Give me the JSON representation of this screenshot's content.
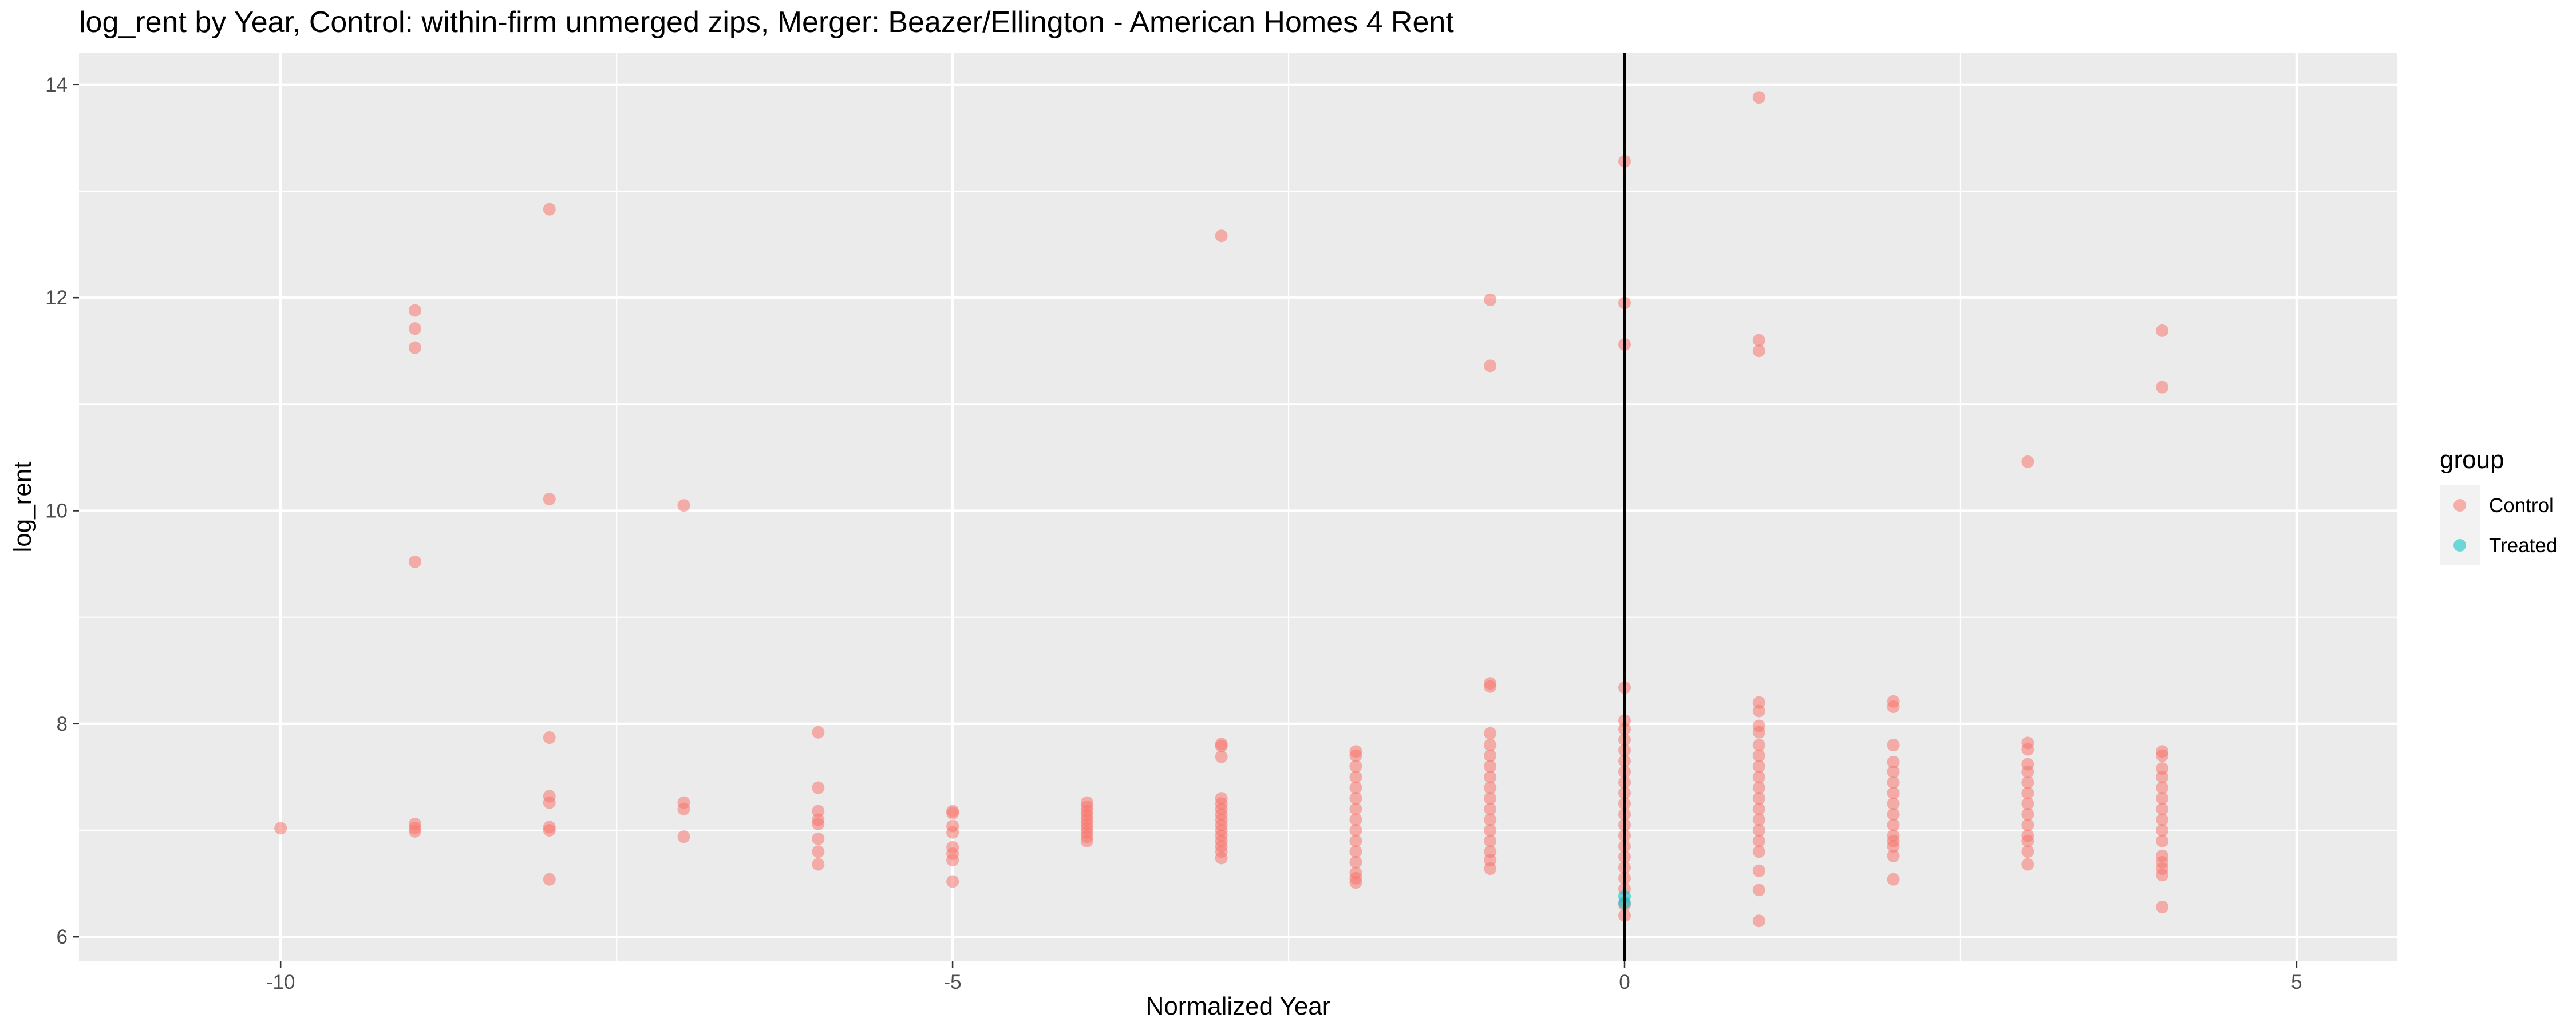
{
  "chart_data": {
    "type": "scatter",
    "title": "log_rent by Year, Control: within-firm unmerged zips, Merger: Beazer/Ellington - American Homes 4 Rent",
    "xlabel": "Normalized Year",
    "ylabel": "log_rent",
    "xlim": [
      -11.5,
      5.75
    ],
    "ylim": [
      5.77,
      14.3
    ],
    "x_ticks": [
      -10,
      -5,
      0,
      5
    ],
    "x_tick_labels": [
      "-10",
      "-5",
      "0",
      "5"
    ],
    "y_ticks": [
      6,
      8,
      10,
      12,
      14
    ],
    "y_tick_labels": [
      "6",
      "8",
      "10",
      "12",
      "14"
    ],
    "grid": true,
    "vline_x": 0,
    "legend": {
      "title": "group",
      "placement": "right",
      "entries": [
        {
          "label": "Control",
          "color": "#F8766D"
        },
        {
          "label": "Treated",
          "color": "#00BFC4"
        }
      ]
    },
    "series": [
      {
        "name": "Control",
        "color": "#F8766D",
        "points": [
          [
            -10,
            7.02
          ],
          [
            -9,
            11.88
          ],
          [
            -9,
            11.71
          ],
          [
            -9,
            11.53
          ],
          [
            -9,
            9.52
          ],
          [
            -9,
            7.06
          ],
          [
            -9,
            7.02
          ],
          [
            -9,
            6.99
          ],
          [
            -8,
            12.83
          ],
          [
            -8,
            10.11
          ],
          [
            -8,
            7.87
          ],
          [
            -8,
            7.32
          ],
          [
            -8,
            7.26
          ],
          [
            -8,
            7.03
          ],
          [
            -8,
            7.0
          ],
          [
            -8,
            6.54
          ],
          [
            -7,
            10.05
          ],
          [
            -7,
            7.26
          ],
          [
            -7,
            7.2
          ],
          [
            -7,
            6.94
          ],
          [
            -6,
            7.92
          ],
          [
            -6,
            7.4
          ],
          [
            -6,
            7.18
          ],
          [
            -6,
            7.1
          ],
          [
            -6,
            7.06
          ],
          [
            -6,
            6.92
          ],
          [
            -6,
            6.8
          ],
          [
            -6,
            6.68
          ],
          [
            -5,
            7.18
          ],
          [
            -5,
            7.16
          ],
          [
            -5,
            7.04
          ],
          [
            -5,
            6.98
          ],
          [
            -5,
            6.84
          ],
          [
            -5,
            6.78
          ],
          [
            -5,
            6.72
          ],
          [
            -5,
            6.52
          ],
          [
            -4,
            7.26
          ],
          [
            -4,
            7.22
          ],
          [
            -4,
            7.18
          ],
          [
            -4,
            7.14
          ],
          [
            -4,
            7.1
          ],
          [
            -4,
            7.06
          ],
          [
            -4,
            7.02
          ],
          [
            -4,
            6.98
          ],
          [
            -4,
            6.94
          ],
          [
            -4,
            6.9
          ],
          [
            -3,
            12.58
          ],
          [
            -3,
            7.81
          ],
          [
            -3,
            7.79
          ],
          [
            -3,
            7.69
          ],
          [
            -3,
            7.3
          ],
          [
            -3,
            7.25
          ],
          [
            -3,
            7.2
          ],
          [
            -3,
            7.15
          ],
          [
            -3,
            7.1
          ],
          [
            -3,
            7.05
          ],
          [
            -3,
            7.0
          ],
          [
            -3,
            6.95
          ],
          [
            -3,
            6.9
          ],
          [
            -3,
            6.85
          ],
          [
            -3,
            6.8
          ],
          [
            -3,
            6.74
          ],
          [
            -2,
            7.74
          ],
          [
            -2,
            7.7
          ],
          [
            -2,
            7.6
          ],
          [
            -2,
            7.5
          ],
          [
            -2,
            7.4
          ],
          [
            -2,
            7.3
          ],
          [
            -2,
            7.2
          ],
          [
            -2,
            7.1
          ],
          [
            -2,
            7.0
          ],
          [
            -2,
            6.9
          ],
          [
            -2,
            6.8
          ],
          [
            -2,
            6.7
          ],
          [
            -2,
            6.6
          ],
          [
            -2,
            6.55
          ],
          [
            -2,
            6.51
          ],
          [
            -1,
            11.98
          ],
          [
            -1,
            11.36
          ],
          [
            -1,
            8.38
          ],
          [
            -1,
            8.35
          ],
          [
            -1,
            7.91
          ],
          [
            -1,
            7.8
          ],
          [
            -1,
            7.7
          ],
          [
            -1,
            7.6
          ],
          [
            -1,
            7.5
          ],
          [
            -1,
            7.4
          ],
          [
            -1,
            7.3
          ],
          [
            -1,
            7.2
          ],
          [
            -1,
            7.1
          ],
          [
            -1,
            7.0
          ],
          [
            -1,
            6.9
          ],
          [
            -1,
            6.8
          ],
          [
            -1,
            6.72
          ],
          [
            -1,
            6.64
          ],
          [
            0,
            13.28
          ],
          [
            0,
            11.95
          ],
          [
            0,
            11.56
          ],
          [
            0,
            8.34
          ],
          [
            0,
            8.03
          ],
          [
            0,
            7.95
          ],
          [
            0,
            7.85
          ],
          [
            0,
            7.75
          ],
          [
            0,
            7.65
          ],
          [
            0,
            7.55
          ],
          [
            0,
            7.45
          ],
          [
            0,
            7.35
          ],
          [
            0,
            7.25
          ],
          [
            0,
            7.15
          ],
          [
            0,
            7.05
          ],
          [
            0,
            6.95
          ],
          [
            0,
            6.85
          ],
          [
            0,
            6.75
          ],
          [
            0,
            6.65
          ],
          [
            0,
            6.55
          ],
          [
            0,
            6.45
          ],
          [
            0,
            6.3
          ],
          [
            0,
            6.2
          ],
          [
            1,
            13.88
          ],
          [
            1,
            11.6
          ],
          [
            1,
            11.5
          ],
          [
            1,
            8.2
          ],
          [
            1,
            8.12
          ],
          [
            1,
            7.98
          ],
          [
            1,
            7.92
          ],
          [
            1,
            7.8
          ],
          [
            1,
            7.7
          ],
          [
            1,
            7.6
          ],
          [
            1,
            7.5
          ],
          [
            1,
            7.4
          ],
          [
            1,
            7.3
          ],
          [
            1,
            7.2
          ],
          [
            1,
            7.1
          ],
          [
            1,
            7.0
          ],
          [
            1,
            6.9
          ],
          [
            1,
            6.8
          ],
          [
            1,
            6.62
          ],
          [
            1,
            6.44
          ],
          [
            1,
            6.15
          ],
          [
            2,
            8.21
          ],
          [
            2,
            8.16
          ],
          [
            2,
            7.8
          ],
          [
            2,
            7.64
          ],
          [
            2,
            7.55
          ],
          [
            2,
            7.45
          ],
          [
            2,
            7.35
          ],
          [
            2,
            7.25
          ],
          [
            2,
            7.15
          ],
          [
            2,
            7.05
          ],
          [
            2,
            6.95
          ],
          [
            2,
            6.9
          ],
          [
            2,
            6.85
          ],
          [
            2,
            6.76
          ],
          [
            2,
            6.54
          ],
          [
            3,
            10.46
          ],
          [
            3,
            7.82
          ],
          [
            3,
            7.76
          ],
          [
            3,
            7.62
          ],
          [
            3,
            7.55
          ],
          [
            3,
            7.45
          ],
          [
            3,
            7.35
          ],
          [
            3,
            7.25
          ],
          [
            3,
            7.15
          ],
          [
            3,
            7.05
          ],
          [
            3,
            6.95
          ],
          [
            3,
            6.9
          ],
          [
            3,
            6.8
          ],
          [
            3,
            6.68
          ],
          [
            4,
            11.69
          ],
          [
            4,
            11.16
          ],
          [
            4,
            7.74
          ],
          [
            4,
            7.7
          ],
          [
            4,
            7.58
          ],
          [
            4,
            7.5
          ],
          [
            4,
            7.4
          ],
          [
            4,
            7.3
          ],
          [
            4,
            7.2
          ],
          [
            4,
            7.1
          ],
          [
            4,
            7.0
          ],
          [
            4,
            6.9
          ],
          [
            4,
            6.76
          ],
          [
            4,
            6.7
          ],
          [
            4,
            6.64
          ],
          [
            4,
            6.58
          ],
          [
            4,
            6.28
          ]
        ]
      },
      {
        "name": "Treated",
        "color": "#00BFC4",
        "points": [
          [
            0,
            6.38
          ],
          [
            0,
            6.32
          ]
        ]
      }
    ]
  }
}
